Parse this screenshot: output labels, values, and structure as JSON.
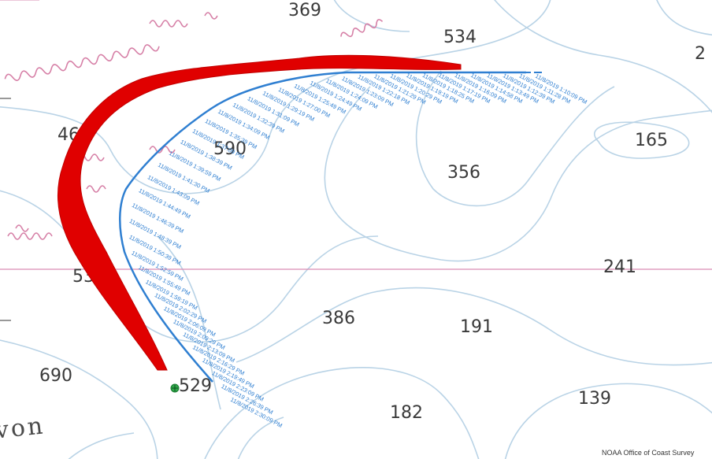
{
  "map": {
    "soundings": [
      "369",
      "534",
      "2",
      "468",
      "590",
      "165",
      "356",
      "53",
      "241",
      "386",
      "191",
      "690",
      "529",
      "139",
      "182"
    ],
    "place_label": "von",
    "credit": "NOAA Office of Coast Survey",
    "track_times": [
      "11/8/2019 1:10:09 PM",
      "11/8/2019 1:11:28 PM",
      "11/8/2019 1:12:39 PM",
      "11/8/2019 1:13:49 PM",
      "11/8/2019 1:14:58 PM",
      "11/8/2019 1:16:09 PM",
      "11/8/2019 1:17:19 PM",
      "11/8/2019 1:18:25 PM",
      "11/8/2019 1:19:19 PM",
      "11/8/2019 1:20:29 PM",
      "11/8/2019 1:21:29 PM",
      "11/8/2019 1:22:18 PM",
      "11/8/2019 1:23:09 PM",
      "11/8/2019 1:24:09 PM",
      "11/8/2019 1:24:49 PM",
      "11/8/2019 1:25:49 PM",
      "11/8/2019 1:27:00 PM",
      "11/8/2019 1:29:19 PM",
      "11/8/2019 1:31:09 PM",
      "11/8/2019 1:32:39 PM",
      "11/8/2019 1:34:09 PM",
      "11/8/2019 1:35:39 PM",
      "11/8/2019 1:37:09 PM",
      "11/8/2019 1:38:39 PM",
      "11/8/2019 1:39:59 PM",
      "11/8/2019 1:41:30 PM",
      "11/8/2019 1:43:09 PM",
      "11/8/2019 1:44:49 PM",
      "11/8/2019 1:46:39 PM",
      "11/8/2019 1:48:39 PM",
      "11/8/2019 1:50:39 PM",
      "11/8/2019 1:52:59 PM",
      "11/8/2019 1:55:49 PM",
      "11/8/2019 1:59:19 PM",
      "11/8/2019 2:02:29 PM",
      "11/8/2019 2:06:09 PM",
      "11/8/2019 2:09:29 PM",
      "11/8/2019 2:13:09 PM",
      "11/8/2019 2:16:29 PM",
      "11/8/2019 2:19:49 PM",
      "11/8/2019 2:23:09 PM",
      "11/8/2019 2:26:39 PM",
      "11/8/2019 2:30:09 PM"
    ],
    "colors": {
      "spill_trajectory": "#e00000",
      "vessel_track": "#2f7fd1",
      "contour": "#b9d3e6",
      "boundary_line": "#d98cb3",
      "hazard_squiggle": "#d67fa6",
      "marker": "#2fa84a"
    }
  }
}
